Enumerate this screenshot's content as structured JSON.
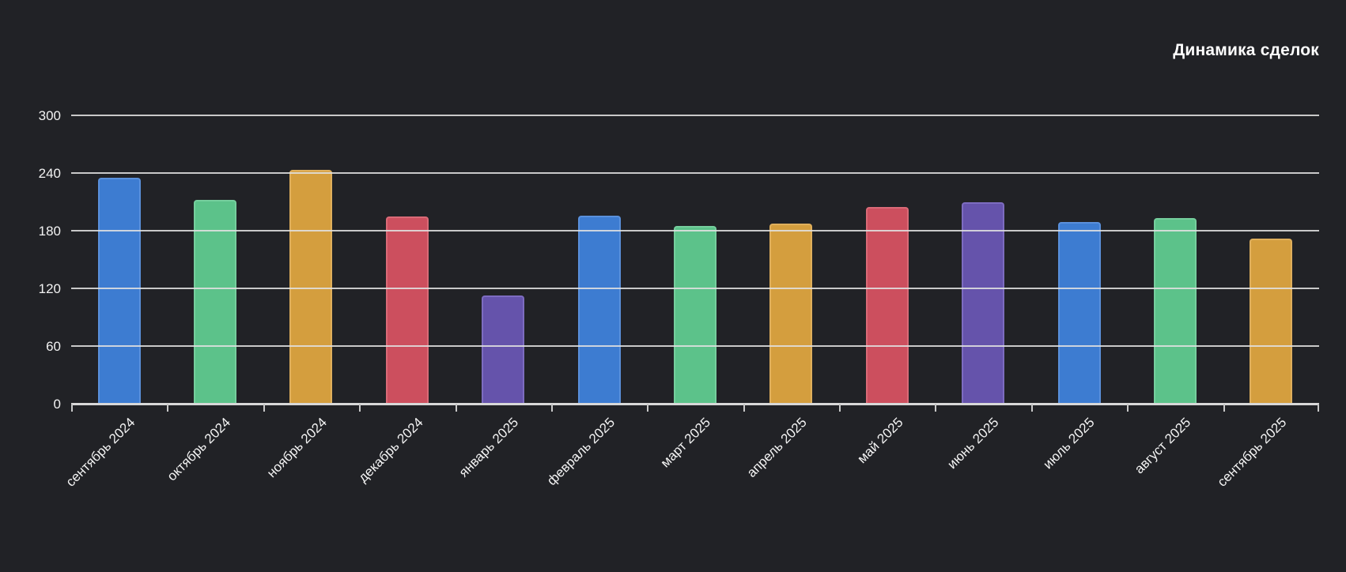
{
  "chart": {
    "title": "Динамика сделок",
    "background": "#212226",
    "grid_color": "#e0e0e0",
    "axis_color": "#d8d8d8",
    "text_color": "#f4f4f4"
  },
  "chart_data": {
    "type": "bar",
    "title": "Динамика сделок",
    "categories": [
      "сентябрь 2024",
      "октябрь 2024",
      "ноябрь 2024",
      "декабрь 2024",
      "январь 2025",
      "февраль 2025",
      "март 2025",
      "апрель 2025",
      "май 2025",
      "июнь 2025",
      "июль 2025",
      "август 2025",
      "сентябрь 2025"
    ],
    "values": [
      235,
      212,
      243,
      195,
      113,
      196,
      185,
      187,
      205,
      210,
      189,
      193,
      172
    ],
    "y_ticks": [
      0,
      60,
      120,
      180,
      240,
      300
    ],
    "ylim": [
      0,
      300
    ],
    "xlabel": "",
    "ylabel": "",
    "grid": true,
    "gridlines_over_bars": true,
    "legend": false,
    "title_position": "top-right",
    "x_label_rotation_deg": -45,
    "bar_colors_cycle": [
      {
        "name": "blue",
        "fill": "#3D7CD1",
        "edge": "#5A90DB"
      },
      {
        "name": "green",
        "fill": "#5CC28A",
        "edge": "#75CE9D"
      },
      {
        "name": "orange",
        "fill": "#D49E3E",
        "edge": "#DFAF5C"
      },
      {
        "name": "red",
        "fill": "#CC4F5E",
        "edge": "#D96A77"
      },
      {
        "name": "purple",
        "fill": "#6553AB",
        "edge": "#7D6CC0"
      }
    ]
  }
}
